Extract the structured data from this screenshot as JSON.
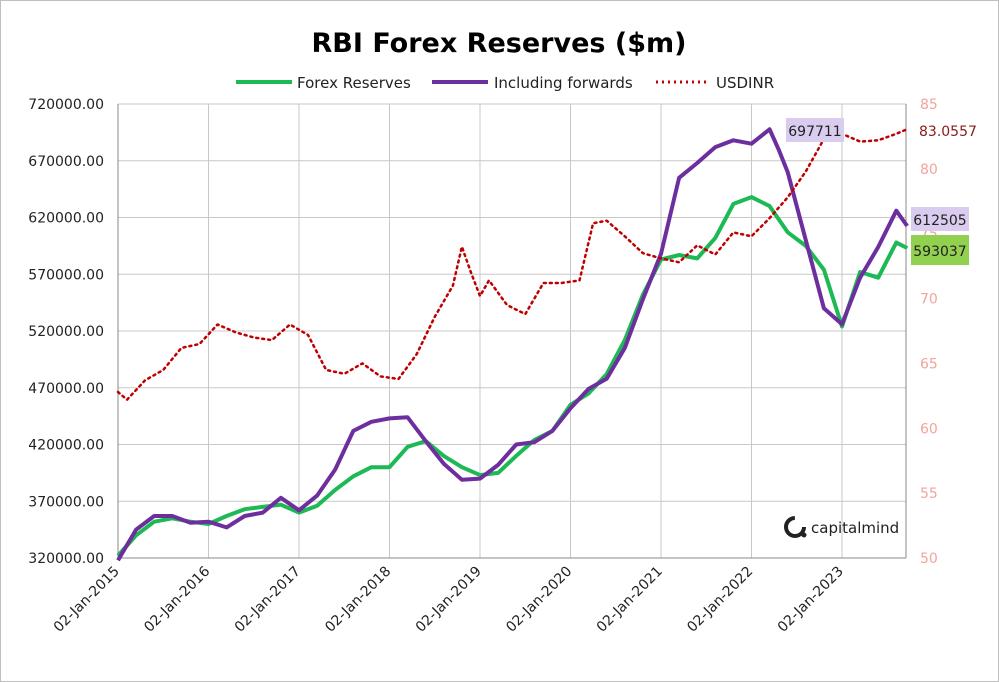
{
  "chart_data": {
    "type": "line",
    "title": "RBI Forex Reserves ($m)",
    "legend": [
      "Forex Reserves",
      "Including forwards",
      "USDINR"
    ],
    "legend_placement": "top-center",
    "grid": true,
    "y_ticks": [
      "720000.00",
      "670000.00",
      "620000.00",
      "570000.00",
      "520000.00",
      "470000.00",
      "420000.00",
      "370000.00",
      "320000.00"
    ],
    "ylim": [
      320000,
      720000
    ],
    "y2_ticks": [
      "85",
      "80",
      "75",
      "70",
      "65",
      "60",
      "55",
      "50"
    ],
    "y2lim": [
      50,
      85
    ],
    "x_ticks": [
      "02-Jan-2015",
      "02-Jan-2016",
      "02-Jan-2017",
      "02-Jan-2018",
      "02-Jan-2019",
      "02-Jan-2020",
      "02-Jan-2021",
      "02-Jan-2022",
      "02-Jan-2023"
    ],
    "series": [
      {
        "name": "Forex Reserves",
        "axis": "left",
        "style": "solid",
        "color": "#1db954",
        "x": [
          2015.0,
          2015.2,
          2015.4,
          2015.6,
          2015.8,
          2016.0,
          2016.2,
          2016.4,
          2016.6,
          2016.8,
          2017.0,
          2017.2,
          2017.4,
          2017.6,
          2017.8,
          2018.0,
          2018.2,
          2018.4,
          2018.6,
          2018.8,
          2019.0,
          2019.2,
          2019.4,
          2019.6,
          2019.8,
          2020.0,
          2020.2,
          2020.4,
          2020.6,
          2020.8,
          2021.0,
          2021.2,
          2021.4,
          2021.6,
          2021.8,
          2022.0,
          2022.2,
          2022.4,
          2022.6,
          2022.8,
          2023.0,
          2023.2,
          2023.4,
          2023.6,
          2023.72
        ],
        "values": [
          322000,
          340000,
          352000,
          355000,
          352000,
          350000,
          357000,
          363000,
          365000,
          367000,
          360000,
          366000,
          380000,
          392000,
          400000,
          400000,
          418000,
          423000,
          410000,
          400000,
          393000,
          395000,
          410000,
          424000,
          432000,
          455000,
          465000,
          482000,
          512000,
          552000,
          583000,
          587000,
          584000,
          602000,
          632000,
          638000,
          630000,
          607000,
          595000,
          574000,
          524000,
          572000,
          567000,
          598000,
          593037
        ]
      },
      {
        "name": "Including forwards",
        "axis": "left",
        "style": "solid",
        "color": "#6e2f9e",
        "x": [
          2015.0,
          2015.2,
          2015.4,
          2015.6,
          2015.8,
          2016.0,
          2016.2,
          2016.4,
          2016.6,
          2016.8,
          2017.0,
          2017.2,
          2017.4,
          2017.6,
          2017.8,
          2018.0,
          2018.2,
          2018.4,
          2018.6,
          2018.8,
          2019.0,
          2019.2,
          2019.4,
          2019.6,
          2019.8,
          2020.0,
          2020.2,
          2020.4,
          2020.6,
          2020.8,
          2021.0,
          2021.2,
          2021.4,
          2021.6,
          2021.8,
          2022.0,
          2022.2,
          2022.3,
          2022.4,
          2022.6,
          2022.8,
          2023.0,
          2023.2,
          2023.4,
          2023.6,
          2023.72
        ],
        "values": [
          318000,
          345000,
          357000,
          357000,
          351000,
          352000,
          347000,
          357000,
          360000,
          373000,
          362000,
          375000,
          398000,
          432000,
          440000,
          443000,
          444000,
          423000,
          403000,
          389000,
          390000,
          402000,
          420000,
          422000,
          432000,
          452000,
          469000,
          478000,
          505000,
          548000,
          588000,
          655000,
          668000,
          682000,
          688000,
          685000,
          697711,
          680000,
          660000,
          600000,
          540000,
          526000,
          567000,
          594000,
          626000,
          612505
        ]
      },
      {
        "name": "USDINR",
        "axis": "right",
        "style": "dotted",
        "color": "#c00000",
        "x": [
          2015.0,
          2015.1,
          2015.3,
          2015.5,
          2015.7,
          2015.9,
          2016.1,
          2016.3,
          2016.5,
          2016.7,
          2016.9,
          2017.1,
          2017.3,
          2017.5,
          2017.7,
          2017.9,
          2018.1,
          2018.3,
          2018.5,
          2018.7,
          2018.8,
          2018.9,
          2019.0,
          2019.1,
          2019.3,
          2019.5,
          2019.7,
          2019.9,
          2020.1,
          2020.25,
          2020.4,
          2020.6,
          2020.8,
          2021.0,
          2021.2,
          2021.4,
          2021.6,
          2021.8,
          2022.0,
          2022.2,
          2022.4,
          2022.6,
          2022.8,
          2023.0,
          2023.2,
          2023.4,
          2023.6,
          2023.72
        ],
        "values": [
          62.8,
          62.2,
          63.7,
          64.5,
          66.2,
          66.5,
          68.0,
          67.4,
          67.0,
          66.8,
          68.0,
          67.2,
          64.5,
          64.2,
          65.0,
          64.0,
          63.8,
          65.7,
          68.6,
          71.0,
          74.0,
          72.0,
          70.2,
          71.4,
          69.5,
          68.8,
          71.2,
          71.2,
          71.4,
          75.8,
          76.0,
          74.8,
          73.5,
          73.1,
          72.8,
          74.1,
          73.4,
          75.1,
          74.8,
          76.2,
          77.8,
          79.8,
          82.3,
          82.7,
          82.1,
          82.2,
          82.7,
          83.0557
        ]
      }
    ],
    "annotations": [
      {
        "text": "697711",
        "series": "Including forwards",
        "style": "callout-lavender"
      },
      {
        "text": "612505",
        "series": "Including forwards",
        "style": "callout-lavender"
      },
      {
        "text": "593037",
        "series": "Forex Reserves",
        "style": "callout-green"
      },
      {
        "text": "83.0557",
        "series": "USDINR",
        "style": "text-darkred"
      }
    ]
  },
  "brand": {
    "name": "capitalmind"
  }
}
